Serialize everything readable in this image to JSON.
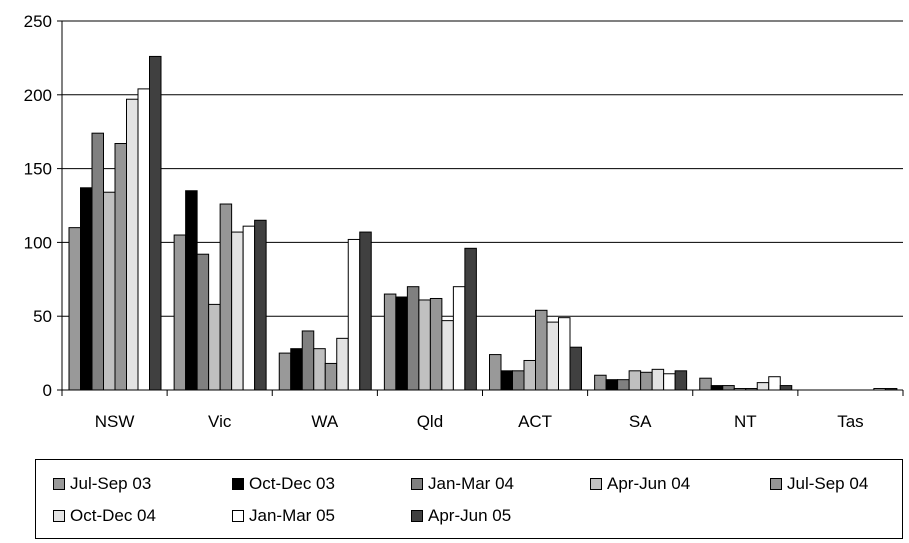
{
  "chart_data": {
    "type": "bar",
    "categories": [
      "NSW",
      "Vic",
      "WA",
      "Qld",
      "ACT",
      "SA",
      "NT",
      "Tas"
    ],
    "series": [
      {
        "name": "Jul-Sep 03",
        "color": "#999999",
        "values": [
          110,
          105,
          25,
          65,
          24,
          10,
          8,
          0
        ]
      },
      {
        "name": "Oct-Dec 03",
        "color": "#000000",
        "values": [
          137,
          135,
          28,
          63,
          13,
          7,
          3,
          0
        ]
      },
      {
        "name": "Jan-Mar 04",
        "color": "#808080",
        "values": [
          174,
          92,
          40,
          70,
          13,
          7,
          3,
          0
        ]
      },
      {
        "name": "Apr-Jun 04",
        "color": "#c0c0c0",
        "values": [
          134,
          58,
          28,
          61,
          20,
          13,
          1,
          0
        ]
      },
      {
        "name": "Jul-Sep 04",
        "color": "#969696",
        "values": [
          167,
          126,
          18,
          62,
          54,
          12,
          1,
          0
        ]
      },
      {
        "name": "Oct-Dec 04",
        "color": "#e3e3e3",
        "values": [
          197,
          107,
          35,
          47,
          46,
          14,
          5,
          0
        ]
      },
      {
        "name": "Jan-Mar 05",
        "color": "#ffffff",
        "values": [
          204,
          111,
          102,
          70,
          49,
          11,
          9,
          1
        ]
      },
      {
        "name": "Apr-Jun 05",
        "color": "#404040",
        "values": [
          226,
          115,
          107,
          96,
          29,
          13,
          3,
          1
        ]
      }
    ],
    "title": "",
    "xlabel": "",
    "ylabel": "",
    "ylim": [
      0,
      250
    ],
    "yticks": [
      "0",
      "50",
      "100",
      "150",
      "200",
      "250"
    ],
    "grid": true,
    "legend_position": "bottom"
  }
}
